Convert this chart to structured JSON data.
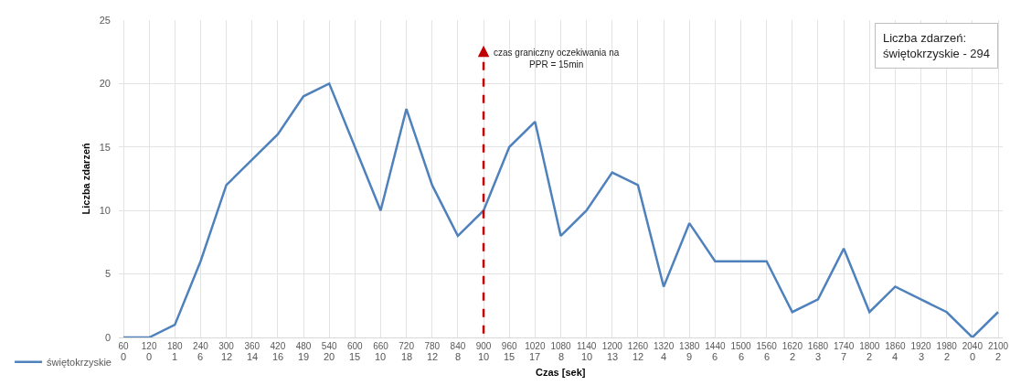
{
  "chart_data": {
    "type": "line",
    "ylabel": "Liczba zdarzeń",
    "xlabel": "Czas [sek]",
    "categories": [
      "60",
      "120",
      "180",
      "240",
      "300",
      "360",
      "420",
      "480",
      "540",
      "600",
      "660",
      "720",
      "780",
      "840",
      "900",
      "960",
      "1020",
      "1080",
      "1140",
      "1200",
      "1260",
      "1320",
      "1380",
      "1440",
      "1500",
      "1560",
      "1620",
      "1680",
      "1740",
      "1800",
      "1860",
      "1920",
      "1980",
      "2040",
      "2100"
    ],
    "series": [
      {
        "name": "świętokrzyskie",
        "color": "#4f81bd",
        "values": [
          0,
          0,
          1,
          6,
          12,
          14,
          16,
          19,
          20,
          15,
          10,
          18,
          12,
          8,
          10,
          15,
          17,
          8,
          10,
          13,
          12,
          4,
          9,
          6,
          6,
          6,
          2,
          3,
          7,
          2,
          4,
          3,
          2,
          0,
          2
        ]
      }
    ],
    "ylim": [
      0,
      25
    ],
    "yticks": [
      0,
      5,
      10,
      15,
      20,
      25
    ],
    "grid": true,
    "legend": "bottom left",
    "data_labels": true,
    "marker": "none",
    "line_style": "solid",
    "ref_lines": [
      {
        "axis": "x",
        "value": "900",
        "label": "czas graniczny oczekiwania na\nPPR = 15min",
        "color": "#c00000",
        "line_style": "dashed"
      }
    ],
    "annotations": [
      "Liczba zdarzeń:\nświętokrzyskie - 294"
    ]
  }
}
